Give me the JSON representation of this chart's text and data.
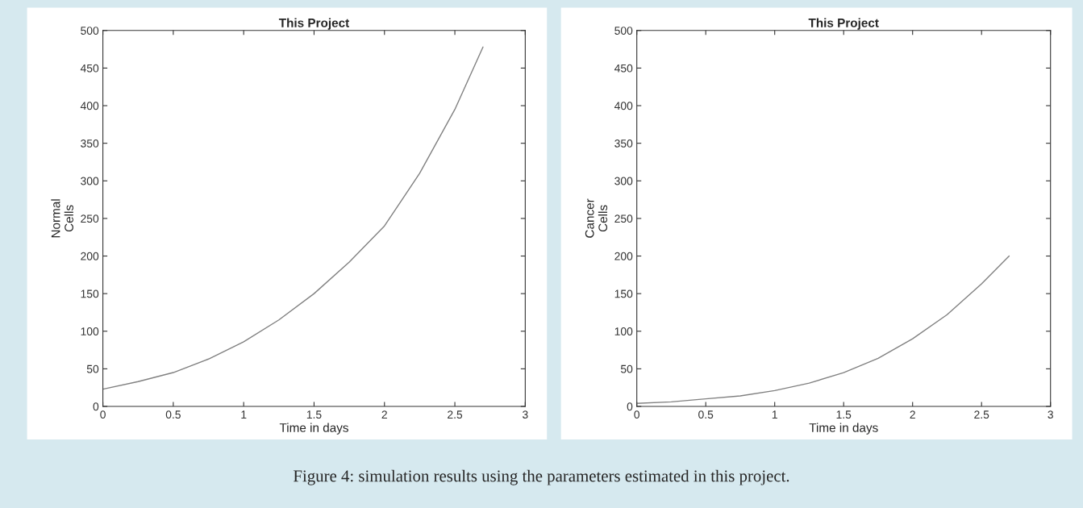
{
  "chart_data": [
    {
      "type": "line",
      "title": "This Project",
      "xlabel": "Time in days",
      "ylabel": "Normal\nCells",
      "x": [
        0,
        0.25,
        0.5,
        0.75,
        1,
        1.25,
        1.5,
        1.75,
        2,
        2.25,
        2.5,
        2.7
      ],
      "series": [
        {
          "color": "#808080",
          "values": [
            23,
            33,
            45,
            63,
            86,
            115,
            150,
            192,
            240,
            310,
            395,
            478
          ]
        }
      ],
      "xlim": [
        0,
        3
      ],
      "xticks": [
        0,
        0.5,
        1,
        1.5,
        2,
        2.5,
        3
      ],
      "ylim": [
        0,
        500
      ],
      "yticks": [
        0,
        50,
        100,
        150,
        200,
        250,
        300,
        350,
        400,
        450,
        500
      ],
      "grid": false,
      "legend": false
    },
    {
      "type": "line",
      "title": "This Project",
      "xlabel": "Time in days",
      "ylabel": "Cancer\nCells",
      "x": [
        0,
        0.25,
        0.5,
        0.75,
        1,
        1.25,
        1.5,
        1.75,
        2,
        2.25,
        2.5,
        2.7
      ],
      "series": [
        {
          "color": "#808080",
          "values": [
            4,
            6,
            10,
            14,
            21,
            31,
            45,
            64,
            90,
            122,
            163,
            200
          ]
        }
      ],
      "xlim": [
        0,
        3
      ],
      "xticks": [
        0,
        0.5,
        1,
        1.5,
        2,
        2.5,
        3
      ],
      "ylim": [
        0,
        500
      ],
      "yticks": [
        0,
        50,
        100,
        150,
        200,
        250,
        300,
        350,
        400,
        450,
        500
      ],
      "grid": false,
      "legend": false,
      "annotations": [
        "Figure 4: simulation results using the parameters estimated in this project."
      ]
    }
  ]
}
